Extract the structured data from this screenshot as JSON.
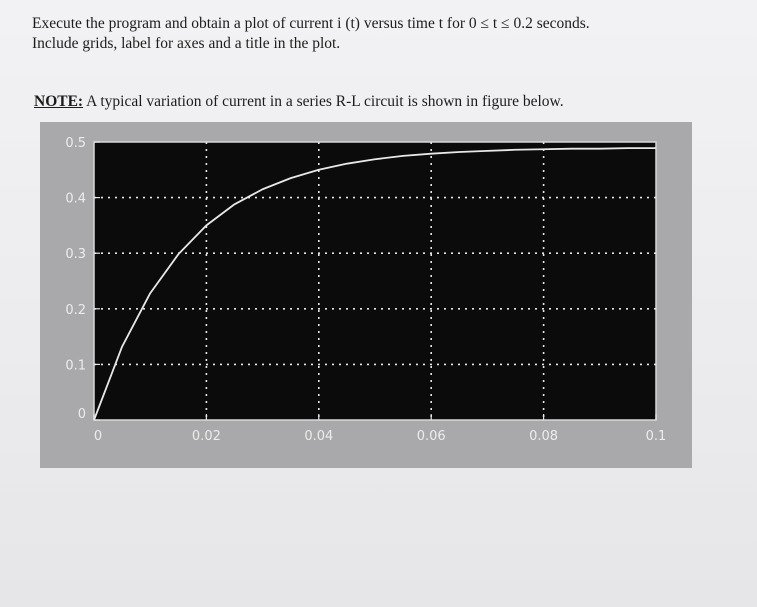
{
  "instructions": {
    "line1": "Execute the program and obtain a plot of current i (t) versus time t for 0 ≤ t ≤ 0.2 seconds.",
    "line2": "Include grids, label for axes and a title in the plot."
  },
  "note": {
    "label": "NOTE:",
    "text": " A typical variation of current in a series R-L circuit is shown in figure below."
  },
  "chart_data": {
    "type": "line",
    "title": "",
    "xlabel": "",
    "ylabel": "",
    "xlim": [
      0,
      0.1
    ],
    "ylim": [
      0,
      0.5
    ],
    "xticks": [
      "0",
      "0.02",
      "0.04",
      "0.06",
      "0.08",
      "0.1"
    ],
    "yticks": [
      "0",
      "0.1",
      "0.2",
      "0.3",
      "0.4",
      "0.5"
    ],
    "grid": true,
    "colors": {
      "background": "#0b0b0b",
      "line": "#e8e8e8",
      "panel": "#a9a9ab"
    },
    "series": [
      {
        "x": [
          0,
          0.005,
          0.01,
          0.015,
          0.02,
          0.025,
          0.03,
          0.035,
          0.04,
          0.045,
          0.05,
          0.055,
          0.06,
          0.065,
          0.07,
          0.075,
          0.08,
          0.085,
          0.09,
          0.095,
          0.1
        ],
        "values": [
          0,
          0.132,
          0.228,
          0.298,
          0.35,
          0.388,
          0.415,
          0.435,
          0.45,
          0.461,
          0.469,
          0.475,
          0.479,
          0.482,
          0.484,
          0.486,
          0.487,
          0.488,
          0.488,
          0.489,
          0.489
        ]
      }
    ]
  }
}
